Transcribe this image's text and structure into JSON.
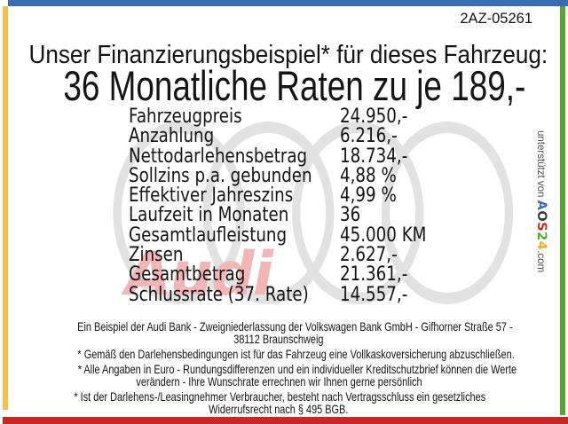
{
  "page": {
    "doc_number": "2AZ-05261",
    "heading_line1": "Unser Finanzierungsbeispiel* für dieses Fahrzeug:",
    "heading_line2": "36 Monatliche Raten zu je 189,-"
  },
  "table": {
    "rows": [
      {
        "label": "Fahrzeugpreis",
        "value": "24.950,-"
      },
      {
        "label": "Anzahlung",
        "value": "6.216,-"
      },
      {
        "label": "Nettodarlehensbetrag",
        "value": "18.734,-"
      },
      {
        "label": "Sollzins p.a. gebunden",
        "value": "4,88 %"
      },
      {
        "label": "Effektiver Jahreszins",
        "value": "4,99 %"
      },
      {
        "label": "Laufzeit in Monaten",
        "value": "36"
      },
      {
        "label": "Gesamtlaufleistung",
        "value": "45.000 KM"
      },
      {
        "label": "Zinsen",
        "value": "2.627,-"
      },
      {
        "label": "Gesamtbetrag",
        "value": "21.361,-"
      },
      {
        "label": "Schlussrate (37. Rate)",
        "value": "14.557,-"
      }
    ]
  },
  "watermark": {
    "brand_text": "Audi",
    "rings_color": "#e2e2e2",
    "brand_text_color": "#f2b6b6"
  },
  "sidebar": {
    "prefix": "unterstützt von ",
    "brand_letters": [
      {
        "char": "A",
        "color": "#3c6cb4"
      },
      {
        "char": "O",
        "color": "#3a3a3a"
      },
      {
        "char": "S",
        "color": "#c62b22"
      },
      {
        "char": "2",
        "color": "#55a82d"
      },
      {
        "char": "4",
        "color": "#e8b12f"
      }
    ],
    "suffix": ".com"
  },
  "footer": {
    "paragraphs": [
      [
        "Ein Beispiel der Audi Bank - Zweigniederlassung der Volkswagen Bank GmbH - Gifhorner Straße 57 -",
        "38112 Braunschweig"
      ],
      [
        "* Gemäß den Darlehensbedingungen ist für das Fahrzeug eine Vollkaskoversicherung abzuschließen."
      ],
      [
        "* Alle Angaben in Euro - Rundungsdifferenzen und ein individueller Kreditschutzbrief können die Werte",
        "verändern - Ihre Wunschrate errechnen wir Ihnen gerne persönlich"
      ],
      [
        "* Ist der Darlehens-/Leasingnehmer Verbraucher, besteht nach Vertragsschluss ein gesetzliches",
        "Widerrufsrecht nach § 495 BGB."
      ]
    ]
  },
  "border_colors": {
    "top": "#3c6cb4",
    "left": "#f3c04f",
    "right": "#55a82d",
    "bottom": "#c52822"
  }
}
